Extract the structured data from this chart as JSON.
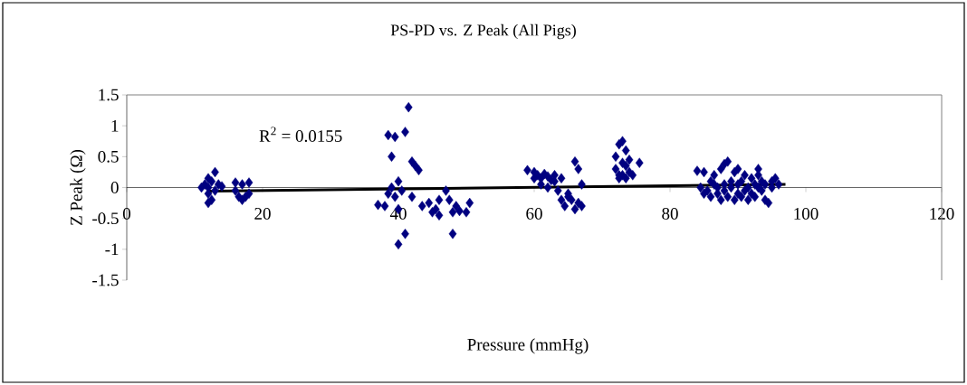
{
  "chart_data": {
    "type": "scatter",
    "title": "PS-PD vs. Z Peak (All Pigs)",
    "xlabel": "Pressure (mmHg)",
    "ylabel": "Z Peak (Ω)",
    "annotations": [
      "R$^{2}$ = 0.0155"
    ],
    "xlim": [
      0,
      120
    ],
    "ylim": [
      -1.5,
      1.5
    ],
    "xticks": [
      0,
      20,
      40,
      60,
      80,
      100,
      120
    ],
    "yticks": [
      -1.5,
      -1,
      -0.5,
      0,
      0.5,
      1,
      1.5
    ],
    "grid": false,
    "legend": false,
    "series": [
      {
        "type": "scatter",
        "marker": "diamond",
        "color": "#000080",
        "x": [
          11,
          11.5,
          12,
          12,
          12,
          12,
          12.5,
          12.5,
          13,
          13,
          13.5,
          14,
          16,
          16,
          16.5,
          17,
          17,
          17.5,
          18,
          18,
          37,
          38,
          38.5,
          38.5,
          39,
          39,
          39.5,
          39.5,
          40,
          40,
          40,
          40.5,
          41,
          41,
          41.5,
          42,
          42,
          42.5,
          43,
          43.5,
          44.5,
          45,
          45.5,
          46,
          46,
          47,
          47.5,
          48,
          48,
          48.5,
          49,
          50,
          50.5,
          59,
          60,
          60,
          60.5,
          61,
          61,
          61.5,
          62,
          62,
          62.5,
          63,
          63,
          63.5,
          64,
          64,
          64.5,
          65,
          65,
          65.5,
          66,
          66,
          66.5,
          66.5,
          67,
          67,
          72,
          72,
          72.5,
          72.5,
          72.5,
          73,
          73,
          73,
          73.5,
          73.5,
          73.5,
          74,
          74,
          74.5,
          75.5,
          84,
          84.5,
          85,
          85,
          85.5,
          86,
          86,
          86.5,
          86.5,
          87,
          87,
          87.5,
          87.5,
          88,
          88,
          88,
          88.5,
          88.5,
          89,
          89,
          89.5,
          89.5,
          90,
          90,
          90,
          90.5,
          90.5,
          91,
          91,
          91.5,
          91.5,
          92,
          92,
          92.5,
          92.5,
          93,
          93,
          93,
          93.5,
          93.5,
          94,
          94,
          94.5,
          95,
          95,
          95.5,
          96
        ],
        "values": [
          0,
          0.05,
          0,
          -0.1,
          -0.25,
          0.15,
          0.1,
          -0.2,
          0.25,
          -0.05,
          0.05,
          0.02,
          0.08,
          -0.05,
          -0.15,
          0.05,
          -0.2,
          -0.15,
          0.08,
          -0.1,
          -0.28,
          -0.3,
          0.85,
          -0.1,
          0.5,
          0,
          0.82,
          -0.15,
          0.1,
          -0.35,
          -0.92,
          -0.05,
          0.9,
          -0.75,
          1.3,
          0.42,
          -0.15,
          0.35,
          0.28,
          -0.3,
          -0.25,
          -0.4,
          -0.35,
          -0.45,
          -0.2,
          -0.05,
          -0.2,
          -0.4,
          -0.75,
          -0.3,
          -0.38,
          -0.4,
          -0.25,
          0.28,
          0.25,
          0.15,
          0.2,
          0.15,
          0.05,
          0.22,
          0.18,
          0,
          0.12,
          0.2,
          0.1,
          -0.05,
          0.15,
          -0.2,
          -0.3,
          -0.1,
          -0.15,
          -0.2,
          0.42,
          -0.35,
          0.3,
          -0.25,
          -0.3,
          0.05,
          0.5,
          0.3,
          0.7,
          0.2,
          0.15,
          0.75,
          0.2,
          0.4,
          0.6,
          0.35,
          0.15,
          0.25,
          0.45,
          0.2,
          0.4,
          0.27,
          0,
          -0.1,
          0.25,
          -0.05,
          0.1,
          -0.15,
          0.05,
          0.2,
          -0.1,
          0,
          -0.2,
          0.3,
          0.05,
          0.38,
          -0.05,
          -0.15,
          0.42,
          0.1,
          0,
          -0.2,
          0.25,
          -0.1,
          0.3,
          0.05,
          -0.15,
          0.1,
          -0.05,
          0.2,
          -0.2,
          0,
          0.15,
          -0.1,
          0.05,
          -0.15,
          0.3,
          0,
          0.2,
          -0.05,
          0.1,
          -0.2,
          0.05,
          -0.25,
          0.1,
          0,
          0.15,
          0.05
        ]
      },
      {
        "type": "line",
        "marker": "none",
        "color": "#000000",
        "x": [
          12,
          97
        ],
        "values": [
          -0.06,
          0.05
        ]
      }
    ]
  }
}
